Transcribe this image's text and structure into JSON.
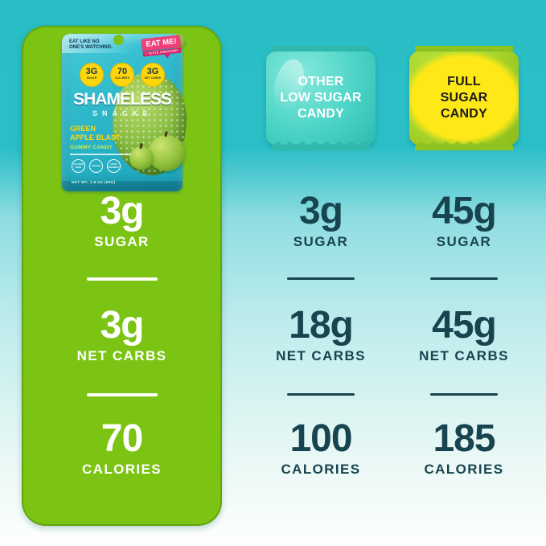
{
  "hero": {
    "bag": {
      "tagline_line1": "EAT LIKE NO",
      "tagline_line2": "ONE'S WATCHING.",
      "badge_title": "EAT ME!",
      "badge_subtitle": "I TASTE AWESOME!",
      "pills": [
        {
          "value": "3G",
          "label": "SUGAR"
        },
        {
          "value": "70",
          "label": "CALORIES"
        },
        {
          "value": "3G",
          "label": "NET CARBS"
        }
      ],
      "brand_line1": "SHAMELESS",
      "brand_line2": "SNACKS",
      "flavor_line1": "GREEN",
      "flavor_line2": "APPLE BLAST",
      "product_type": "GUMMY CANDY",
      "diet_badges": [
        {
          "label": "GLUTEN FREE"
        },
        {
          "label": "VEGAN"
        },
        {
          "label": "KETO FRIENDLY"
        }
      ],
      "net_weight": "NET WT. 1.8 OZ (50G)"
    },
    "stats": [
      {
        "value": "3g",
        "label": "SUGAR"
      },
      {
        "value": "3g",
        "label": "NET CARBS"
      },
      {
        "value": "70",
        "label": "CALORIES"
      }
    ]
  },
  "competitors": [
    {
      "bag_line1": "OTHER",
      "bag_line2": "LOW SUGAR",
      "bag_line3": "CANDY",
      "stats": [
        {
          "value": "3g",
          "label": "SUGAR"
        },
        {
          "value": "18g",
          "label": "NET CARBS"
        },
        {
          "value": "100",
          "label": "CALORIES"
        }
      ]
    },
    {
      "bag_line1": "FULL",
      "bag_line2": "SUGAR",
      "bag_line3": "CANDY",
      "stats": [
        {
          "value": "45g",
          "label": "SUGAR"
        },
        {
          "value": "45g",
          "label": "NET CARBS"
        },
        {
          "value": "185",
          "label": "CALORIES"
        }
      ]
    }
  ],
  "colors": {
    "background_top": "#2abec7",
    "background_bottom": "#fdfffd",
    "hero_panel_green": "#7cc414",
    "stat_text_light": "#ffffff",
    "stat_text_dark": "#17444f",
    "hero_bag_teal": "#2db7c9",
    "competitor_bag_teal": "#4cd4c6",
    "competitor_bag_green": "#a8d52b",
    "competitor_bag_yellow": "#ffe818",
    "badge_pink": "#ee3f78",
    "pill_yellow": "#ffd60a"
  }
}
